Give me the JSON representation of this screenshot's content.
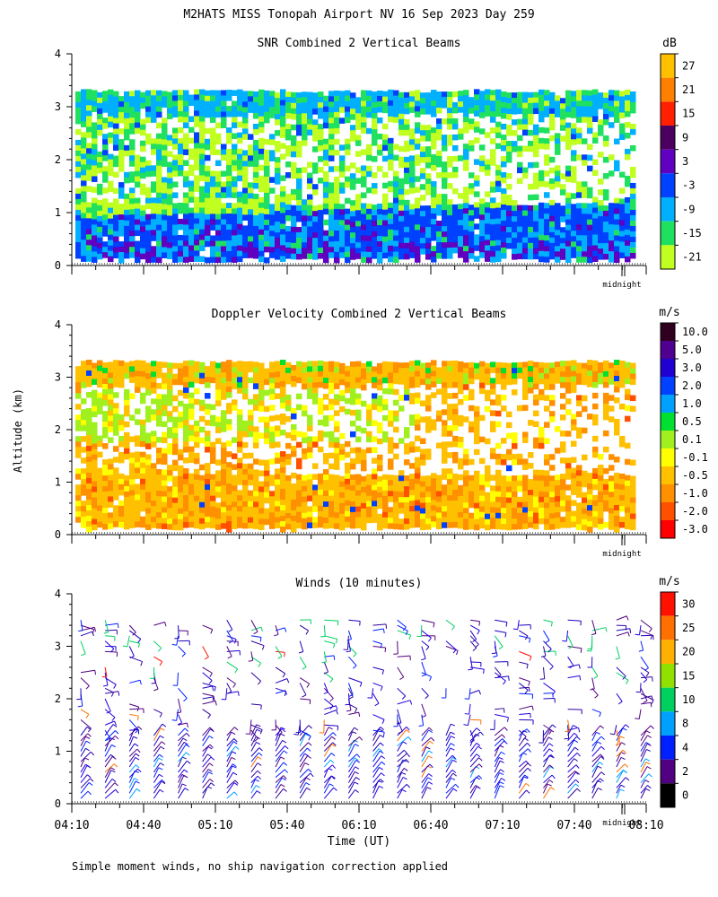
{
  "page": {
    "title": "M2HATS MISS Tonopah Airport NV  16 Sep 2023 Day 259",
    "y_axis_label": "Altitude (km)",
    "x_axis_label": "Time (UT)",
    "footnote": "Simple moment winds, no ship navigation correction applied",
    "midnight_label": "midnight"
  },
  "chart_data": [
    {
      "type": "heatmap",
      "title": "SNR Combined 2 Vertical Beams",
      "unit": "dB",
      "ylim": [
        0,
        4
      ],
      "yticks": [
        "0",
        "1",
        "2",
        "3",
        "4"
      ],
      "x_range": [
        "04:10",
        "08:10"
      ],
      "colorbar_labels": [
        "27",
        "21",
        "15",
        "9",
        "3",
        "-3",
        "-9",
        "-15",
        "-21"
      ],
      "colorbar_colors": [
        "#ffc000",
        "#ff8000",
        "#ff2000",
        "#4b0060",
        "#6000c0",
        "#0040ff",
        "#00b0ff",
        "#20e060",
        "#c0ff20"
      ],
      "data_top_km": 3.3,
      "data_bottom_km": 0.15
    },
    {
      "type": "heatmap",
      "title": "Doppler Velocity Combined 2 Vertical Beams",
      "unit": "m/s",
      "ylim": [
        0,
        4
      ],
      "yticks": [
        "0",
        "1",
        "2",
        "3",
        "4"
      ],
      "x_range": [
        "04:10",
        "08:10"
      ],
      "colorbar_labels": [
        "10.0",
        "5.0",
        "3.0",
        "2.0",
        "1.0",
        "0.5",
        "0.1",
        "-0.1",
        "-0.5",
        "-1.0",
        "-2.0",
        "-3.0"
      ],
      "colorbar_colors": [
        "#300020",
        "#500090",
        "#2000d0",
        "#0040ff",
        "#00a0ff",
        "#00e030",
        "#a0f020",
        "#ffff00",
        "#ffc000",
        "#ff9000",
        "#ff5000",
        "#ff0000"
      ],
      "data_top_km": 3.3,
      "data_bottom_km": 0.15
    },
    {
      "type": "scatter",
      "title": "Winds (10 minutes)",
      "unit": "m/s",
      "ylim": [
        0,
        4
      ],
      "yticks": [
        "0",
        "1",
        "2",
        "3",
        "4"
      ],
      "xticks": [
        "04:10",
        "04:40",
        "05:10",
        "05:40",
        "06:10",
        "06:40",
        "07:10",
        "07:40",
        "08:10"
      ],
      "colorbar_labels": [
        "30",
        "25",
        "20",
        "15",
        "10",
        "8",
        "4",
        "2",
        "0"
      ],
      "colorbar_colors": [
        "#ff1000",
        "#ff7000",
        "#ffb000",
        "#90e000",
        "#00d060",
        "#00a0ff",
        "#0020ff",
        "#500080",
        "#000000"
      ],
      "barb_columns": 24,
      "barb_levels_km": [
        0.1,
        3.6
      ]
    }
  ]
}
